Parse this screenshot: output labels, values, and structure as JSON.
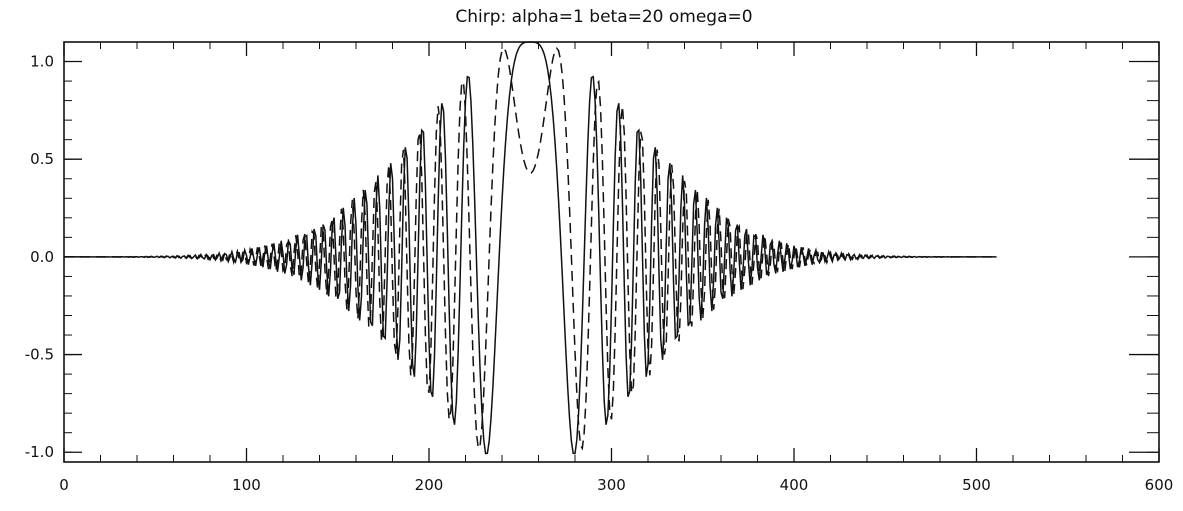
{
  "chart_data": {
    "type": "line",
    "title": "Chirp: alpha=1 beta=20 omega=0",
    "xlabel": "",
    "ylabel": "",
    "xlim": [
      0,
      600
    ],
    "ylim": [
      -1.05,
      1.1
    ],
    "x_ticks": [
      0,
      100,
      200,
      300,
      400,
      500,
      600
    ],
    "x_tick_labels": [
      "0",
      "100",
      "200",
      "300",
      "400",
      "500",
      "600"
    ],
    "y_ticks": [
      1.0,
      0.5,
      0.0,
      -0.5,
      -1.0
    ],
    "y_tick_labels": [
      "1.0",
      "0.5",
      "0.0",
      "-0.5",
      "-1.0"
    ],
    "grid": false,
    "legend": "none",
    "series": [
      {
        "style": "solid",
        "description_values": "real part of chirp",
        "x_start": 0,
        "x_end": 511,
        "x_step": 1,
        "center": 255.5,
        "envelope_width": 60,
        "phase_scale": 0.054,
        "amplitude": 1.1
      },
      {
        "style": "dashed",
        "x_start": 0,
        "x_end": 511,
        "x_step": 1,
        "center": 255.5,
        "envelope_width": 60,
        "phase_scale": 0.054,
        "amplitude": 1.1
      }
    ]
  },
  "colors": {
    "line": "#111111",
    "background": "#ffffff"
  }
}
